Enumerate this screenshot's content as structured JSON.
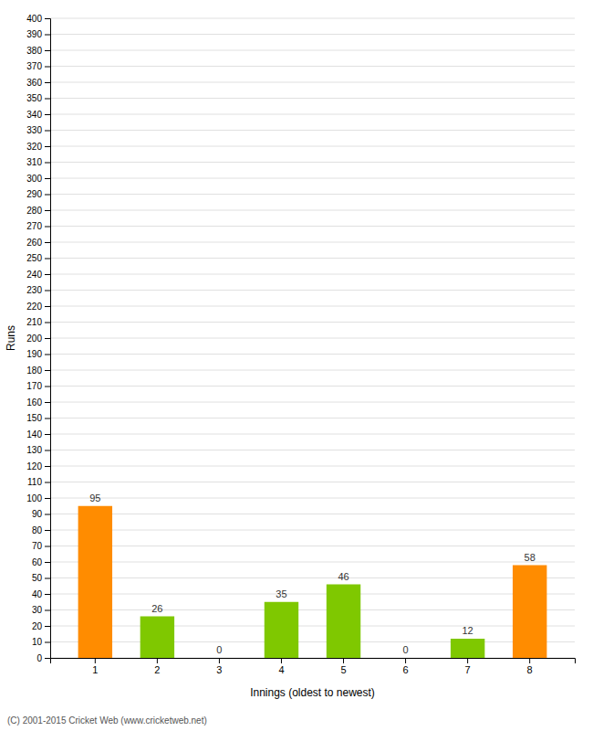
{
  "chart_data": {
    "type": "bar",
    "xlabel": "Innings (oldest to newest)",
    "ylabel": "Runs",
    "footer": "(C) 2001-2015 Cricket Web (www.cricketweb.net)",
    "categories": [
      "1",
      "2",
      "3",
      "4",
      "5",
      "6",
      "7",
      "8"
    ],
    "values": [
      95,
      26,
      0,
      35,
      46,
      0,
      12,
      58
    ],
    "colors": [
      "#ff8c00",
      "#7fc800",
      "#7fc800",
      "#7fc800",
      "#7fc800",
      "#7fc800",
      "#7fc800",
      "#ff8c00"
    ],
    "ylim": [
      0,
      400
    ],
    "yticks": [
      0,
      10,
      20,
      30,
      40,
      50,
      60,
      70,
      80,
      90,
      100,
      110,
      120,
      130,
      140,
      150,
      160,
      170,
      180,
      190,
      200,
      210,
      220,
      230,
      240,
      250,
      260,
      270,
      280,
      290,
      300,
      310,
      320,
      330,
      340,
      350,
      360,
      370,
      380,
      390,
      400
    ],
    "grid": true,
    "data_labels": true
  }
}
